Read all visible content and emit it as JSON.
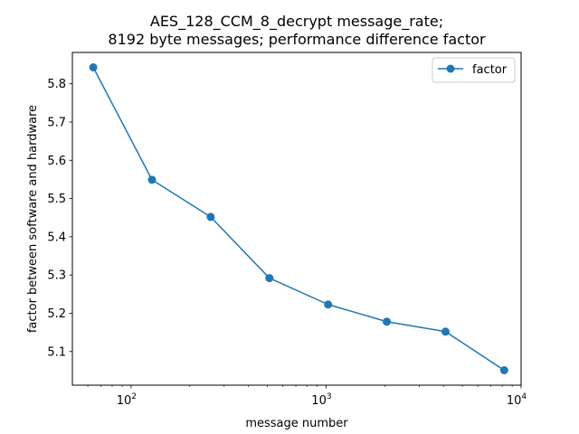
{
  "chart_data": {
    "type": "line",
    "title_lines": [
      "AES_128_CCM_8_decrypt message_rate;",
      "8192 byte messages; performance difference factor"
    ],
    "xlabel": "message number",
    "ylabel": "factor between software and hardware",
    "x_scale": "log",
    "xlim": [
      50,
      10000
    ],
    "ylim": [
      5.012,
      5.882
    ],
    "x_ticks": [
      {
        "base": "10",
        "exp": "2",
        "value": 100
      },
      {
        "base": "10",
        "exp": "3",
        "value": 1000
      },
      {
        "base": "10",
        "exp": "4",
        "value": 10000
      }
    ],
    "y_ticks": [
      {
        "label": "5.1",
        "value": 5.1
      },
      {
        "label": "5.2",
        "value": 5.2
      },
      {
        "label": "5.3",
        "value": 5.3
      },
      {
        "label": "5.4",
        "value": 5.4
      },
      {
        "label": "5.5",
        "value": 5.5
      },
      {
        "label": "5.6",
        "value": 5.6
      },
      {
        "label": "5.7",
        "value": 5.7
      },
      {
        "label": "5.8",
        "value": 5.8
      }
    ],
    "grid": false,
    "legend_position": "top-right",
    "series": [
      {
        "name": "factor",
        "color": "#1f77b4",
        "marker": "circle",
        "x": [
          64,
          128,
          256,
          512,
          1024,
          2048,
          4096,
          8192
        ],
        "y": [
          5.843,
          5.549,
          5.452,
          5.292,
          5.223,
          5.178,
          5.152,
          5.051
        ]
      }
    ]
  }
}
